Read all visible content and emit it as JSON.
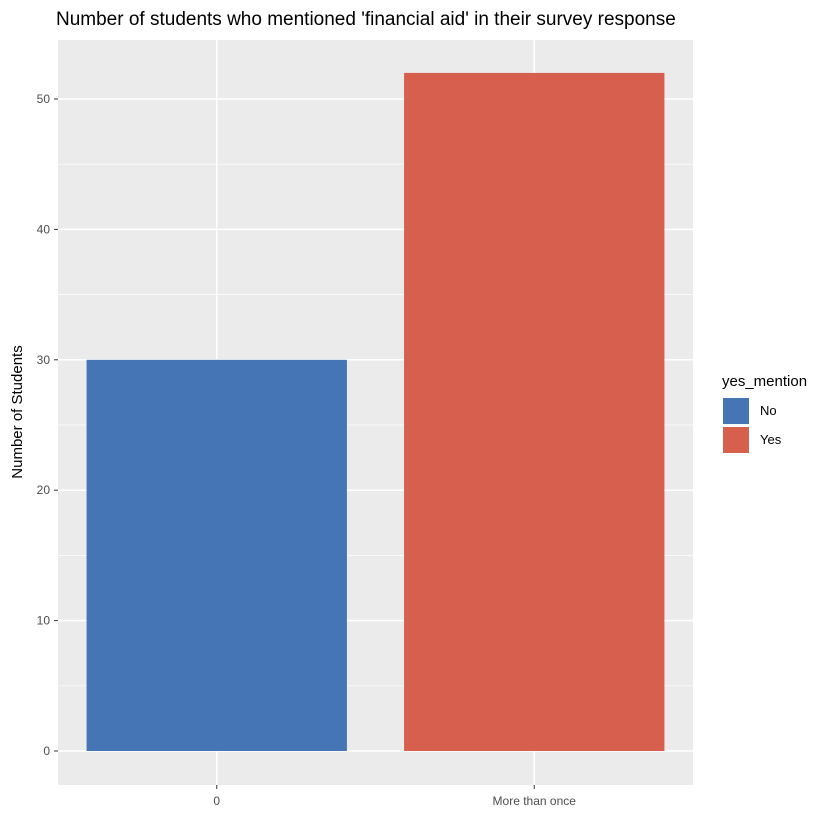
{
  "chart_data": {
    "type": "bar",
    "title": "Number of students who mentioned 'financial aid' in their survey response",
    "xlabel": "",
    "ylabel": "Number of Students",
    "categories": [
      "0",
      "More than once"
    ],
    "series": [
      {
        "name": "No",
        "category": "0",
        "value": 30,
        "color": "#4575b4"
      },
      {
        "name": "Yes",
        "category": "More than once",
        "value": 52,
        "color": "#d75f4e"
      }
    ],
    "ylim": [
      0,
      54
    ],
    "yticks": [
      0,
      10,
      20,
      30,
      40,
      50
    ],
    "grid": true,
    "panel_background": "#ebebeb",
    "grid_color": "#ffffff",
    "legend": {
      "title": "yes_mention",
      "placement": "right",
      "entries": [
        {
          "label": "No",
          "color": "#4575b4"
        },
        {
          "label": "Yes",
          "color": "#d75f4e"
        }
      ]
    }
  }
}
